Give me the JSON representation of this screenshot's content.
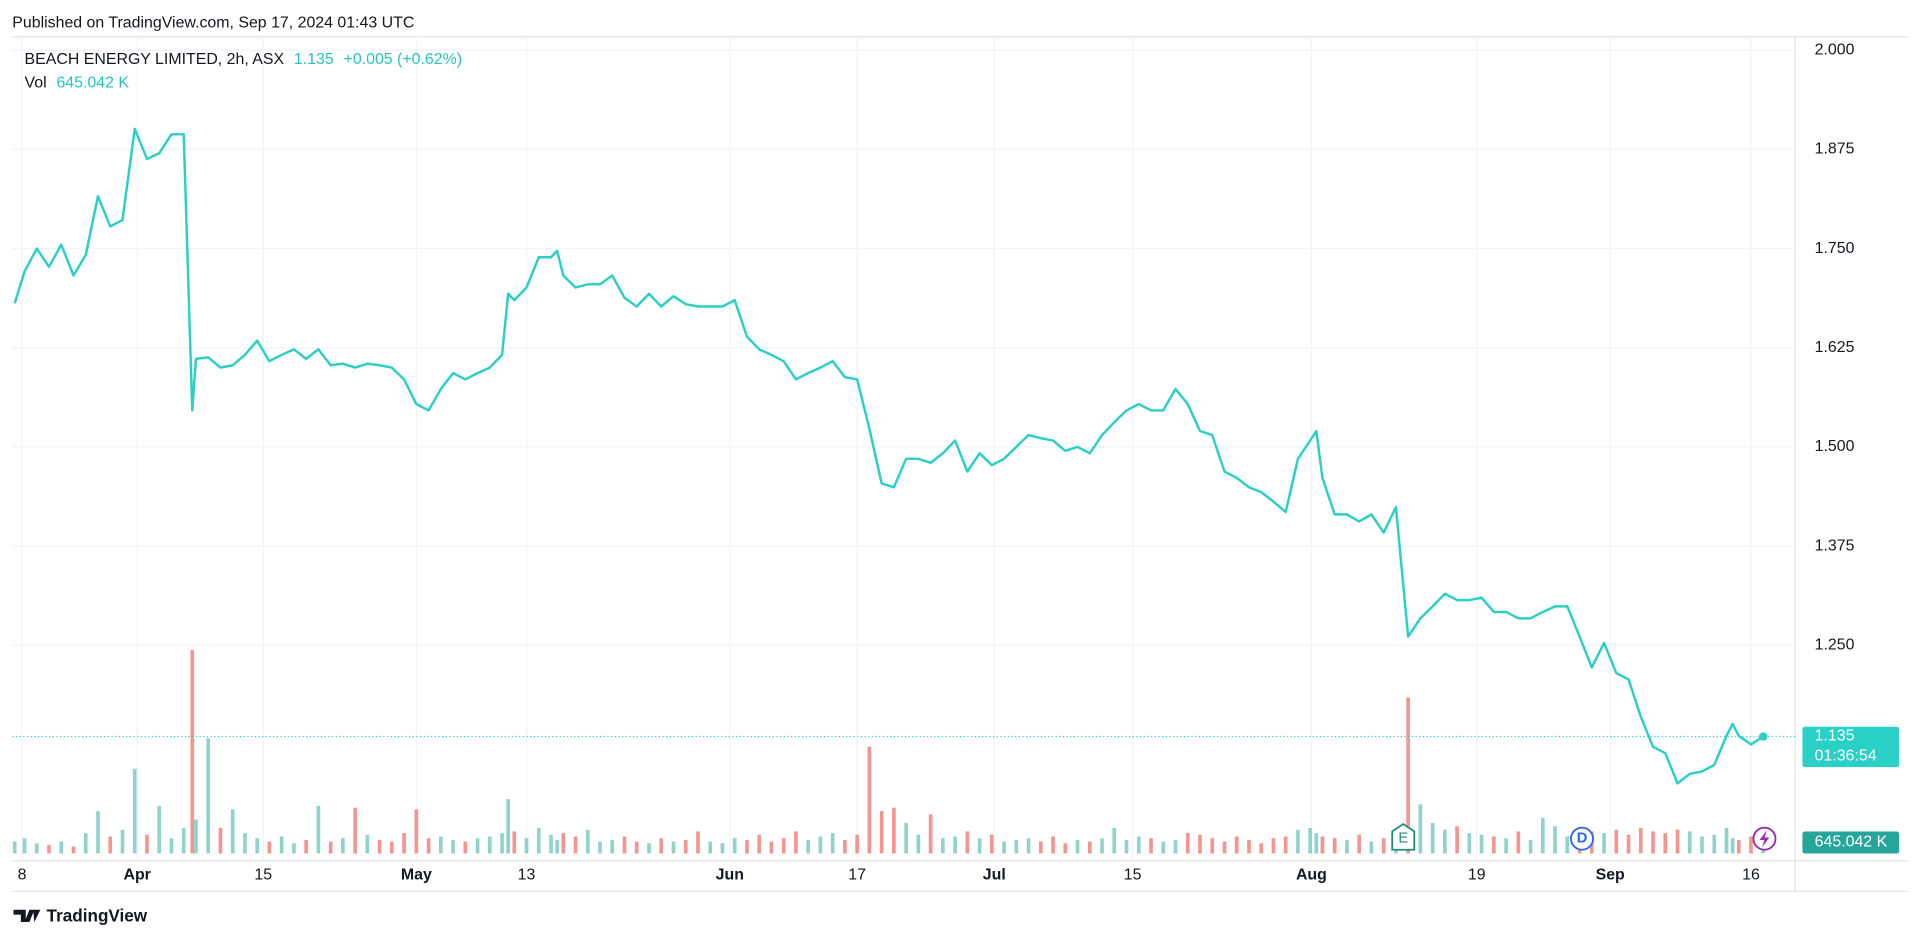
{
  "chart_data": {
    "type": "line",
    "published": "Published on TradingView.com, Sep 17, 2024 01:43 UTC",
    "title": "BEACH ENERGY LIMITED, 2h, ASX",
    "last": 1.135,
    "change": "+0.005 (+0.62%)",
    "countdown": "01:36:54",
    "brand": "TradingView",
    "markers": [
      "E",
      "D"
    ],
    "grid": true,
    "x": [
      12,
      20,
      30,
      40,
      50,
      60,
      70,
      80,
      90,
      100,
      110,
      120,
      130,
      140,
      150,
      157,
      160,
      170,
      180,
      190,
      200,
      210,
      220,
      230,
      240,
      250,
      260,
      270,
      280,
      290,
      300,
      310,
      320,
      330,
      340,
      350,
      360,
      370,
      380,
      390,
      400,
      410,
      415,
      420,
      430,
      440,
      450,
      455,
      460,
      470,
      480,
      490,
      500,
      510,
      520,
      530,
      540,
      550,
      560,
      570,
      580,
      590,
      600,
      610,
      620,
      630,
      640,
      650,
      660,
      670,
      680,
      690,
      700,
      710,
      720,
      730,
      740,
      750,
      760,
      770,
      780,
      790,
      800,
      810,
      820,
      830,
      840,
      850,
      860,
      870,
      880,
      890,
      900,
      910,
      920,
      930,
      940,
      950,
      960,
      970,
      980,
      990,
      1000,
      1010,
      1020,
      1030,
      1040,
      1050,
      1060,
      1070,
      1075,
      1080,
      1090,
      1100,
      1110,
      1120,
      1130,
      1140,
      1150,
      1160,
      1170,
      1180,
      1190,
      1200,
      1210,
      1220,
      1230,
      1240,
      1250,
      1260,
      1270,
      1280,
      1290,
      1300,
      1310,
      1320,
      1330,
      1340,
      1350,
      1360,
      1370,
      1380,
      1390,
      1400,
      1410,
      1415,
      1420,
      1430,
      1440
    ],
    "xlim": [
      0,
      1465
    ],
    "xticks": [
      {
        "value": 18,
        "label": "8"
      },
      {
        "value": 112,
        "label": "Apr"
      },
      {
        "value": 215,
        "label": "15"
      },
      {
        "value": 340,
        "label": "May"
      },
      {
        "value": 430,
        "label": "13"
      },
      {
        "value": 596,
        "label": "Jun"
      },
      {
        "value": 700,
        "label": "17"
      },
      {
        "value": 812,
        "label": "Jul"
      },
      {
        "value": 925,
        "label": "15"
      },
      {
        "value": 1071,
        "label": "Aug"
      },
      {
        "value": 1206,
        "label": "19"
      },
      {
        "value": 1315,
        "label": "Sep"
      },
      {
        "value": 1430,
        "label": "16"
      }
    ],
    "ylim": [
      1.0,
      2.0
    ],
    "yticks": [
      {
        "value": 1.25,
        "label": "1.250"
      },
      {
        "value": 1.375,
        "label": "1.375"
      },
      {
        "value": 1.5,
        "label": "1.500"
      },
      {
        "value": 1.625,
        "label": "1.625"
      },
      {
        "value": 1.75,
        "label": "1.750"
      },
      {
        "value": 1.875,
        "label": "1.875"
      },
      {
        "value": 2.0,
        "label": "2.000"
      }
    ],
    "y2lim": [
      0,
      12500
    ],
    "series": [
      {
        "color": "#2ad0c6",
        "values": [
          1.681,
          1.721,
          1.75,
          1.727,
          1.755,
          1.716,
          1.742,
          1.816,
          1.778,
          1.786,
          1.901,
          1.863,
          1.87,
          1.894,
          1.894,
          1.546,
          1.611,
          1.613,
          1.6,
          1.603,
          1.616,
          1.634,
          1.608,
          1.616,
          1.623,
          1.611,
          1.623,
          1.603,
          1.605,
          1.6,
          1.605,
          1.603,
          1.6,
          1.585,
          1.554,
          1.546,
          1.573,
          1.593,
          1.585,
          1.593,
          1.6,
          1.616,
          1.693,
          1.685,
          1.701,
          1.739,
          1.739,
          1.747,
          1.716,
          1.701,
          1.705,
          1.705,
          1.716,
          1.688,
          1.677,
          1.693,
          1.677,
          1.69,
          1.68,
          1.677,
          1.677,
          1.677,
          1.685,
          1.639,
          1.623,
          1.616,
          1.608,
          1.585,
          1.593,
          1.6,
          1.608,
          1.588,
          1.585,
          1.523,
          1.454,
          1.449,
          1.485,
          1.485,
          1.48,
          1.492,
          1.508,
          1.469,
          1.492,
          1.477,
          1.485,
          1.5,
          1.515,
          1.511,
          1.508,
          1.495,
          1.5,
          1.492,
          1.515,
          1.531,
          1.546,
          1.554,
          1.546,
          1.546,
          1.573,
          1.554,
          1.52,
          1.515,
          1.469,
          1.461,
          1.449,
          1.443,
          1.431,
          1.418,
          1.485,
          1.508,
          1.52,
          1.461,
          1.415,
          1.415,
          1.406,
          1.415,
          1.392,
          1.424,
          1.261,
          1.284,
          1.299,
          1.315,
          1.307,
          1.307,
          1.31,
          1.292,
          1.292,
          1.284,
          1.284,
          1.292,
          1.299,
          1.299,
          1.261,
          1.222,
          1.253,
          1.215,
          1.207,
          1.16,
          1.122,
          1.114,
          1.076,
          1.088,
          1.091,
          1.099,
          1.136,
          1.151,
          1.136,
          1.125,
          1.135
        ]
      },
      {
        "name": "Vol",
        "axis": "y2",
        "up_color": "#8fd3cc",
        "down_color": "#f4968f",
        "last_label": "645.042 K",
        "values": [
          700,
          900,
          600,
          500,
          700,
          400,
          1200,
          2500,
          1000,
          1400,
          5000,
          1100,
          2800,
          900,
          1500,
          12000,
          2000,
          6800,
          1500,
          2600,
          1200,
          900,
          700,
          1000,
          600,
          800,
          2800,
          700,
          900,
          2700,
          1100,
          800,
          700,
          1200,
          2600,
          900,
          1000,
          800,
          700,
          900,
          1000,
          1200,
          3200,
          1300,
          900,
          1500,
          1100,
          800,
          1200,
          1000,
          1400,
          700,
          800,
          1000,
          700,
          600,
          900,
          700,
          800,
          1300,
          700,
          600,
          900,
          800,
          1100,
          700,
          900,
          1300,
          800,
          1000,
          1200,
          800,
          1100,
          6300,
          2500,
          2700,
          1800,
          1100,
          2300,
          900,
          1000,
          1300,
          900,
          1100,
          700,
          800,
          900,
          700,
          1000,
          600,
          800,
          700,
          900,
          1500,
          800,
          1000,
          900,
          700,
          800,
          1200,
          1100,
          900,
          700,
          1000,
          800,
          600,
          900,
          1000,
          1400,
          1500,
          1200,
          1000,
          900,
          800,
          1100,
          700,
          900,
          1200,
          9200,
          2900,
          1800,
          1400,
          1600,
          1200,
          1100,
          1000,
          900,
          1300,
          800,
          2100,
          1600,
          1000,
          900,
          1300,
          1200,
          1400,
          1100,
          1500,
          1300,
          1200,
          1400,
          1300,
          1000,
          1100,
          1500,
          900,
          800,
          1000,
          645.042
        ]
      }
    ]
  }
}
